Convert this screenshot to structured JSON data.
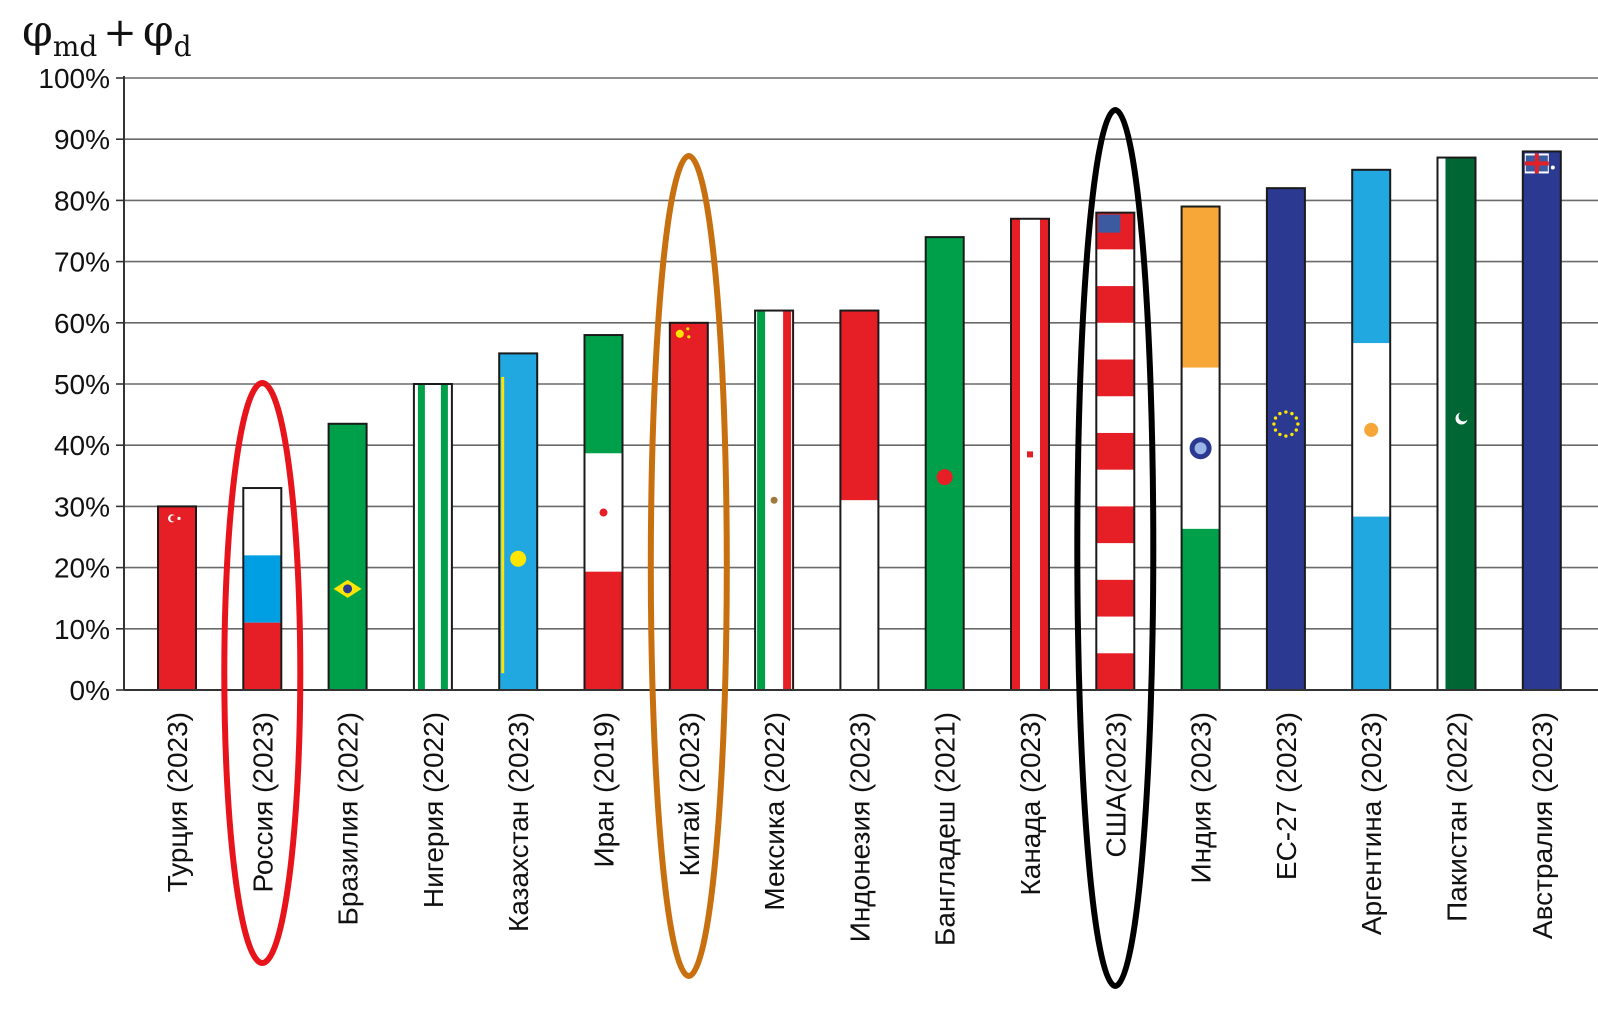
{
  "chart_data": {
    "type": "bar",
    "ylabel": {
      "base1": "φ",
      "sub1": "md",
      "op": "+",
      "base2": "φ",
      "sub2": "d"
    },
    "ylim": [
      0,
      100
    ],
    "yticks": [
      0,
      10,
      20,
      30,
      40,
      50,
      60,
      70,
      80,
      90,
      100
    ],
    "ytick_labels": [
      "0%",
      "10%",
      "20%",
      "30%",
      "40%",
      "50%",
      "60%",
      "70%",
      "80%",
      "90%",
      "100%"
    ],
    "grid": true,
    "categories": [
      "Турция (2023)",
      "Россия (2023)",
      "Бразилия (2022)",
      "Нигерия (2022)",
      "Казахстан (2023)",
      "Иран (2019)",
      "Китай (2023)",
      "Мексика (2022)",
      "Индонезия (2023)",
      "Бангладеш (2021)",
      "Канада (2023)",
      "США(2023)",
      "Индия (2023)",
      "ЕС-27 (2023)",
      "Аргентина (2023)",
      "Пакистан (2022)",
      "Австралия (2023)"
    ],
    "values": [
      30,
      33,
      43.5,
      50,
      55,
      58,
      60,
      62,
      62,
      74,
      77,
      78,
      79,
      82,
      85,
      87,
      88
    ],
    "bar_style": [
      "turkey",
      "russia",
      "brazil",
      "nigeria",
      "kazakhstan",
      "iran",
      "china",
      "mexico",
      "indonesia",
      "bangladesh",
      "canada",
      "usa",
      "india",
      "eu",
      "argentina",
      "pakistan",
      "australia"
    ],
    "highlights": [
      {
        "category": "Россия (2023)",
        "color": "#e8141b"
      },
      {
        "category": "Китай (2023)",
        "color": "#c8700f"
      },
      {
        "category": "США(2023)",
        "color": "#000000"
      }
    ]
  },
  "colors": {
    "red": "#e51f25",
    "green": "#00a04b",
    "blue_light": "#22a8e0",
    "blue_ru": "#009fe3",
    "navy": "#2b3990",
    "dark_green": "#006633",
    "saffron": "#f7a738",
    "yellow": "#ffe600"
  }
}
